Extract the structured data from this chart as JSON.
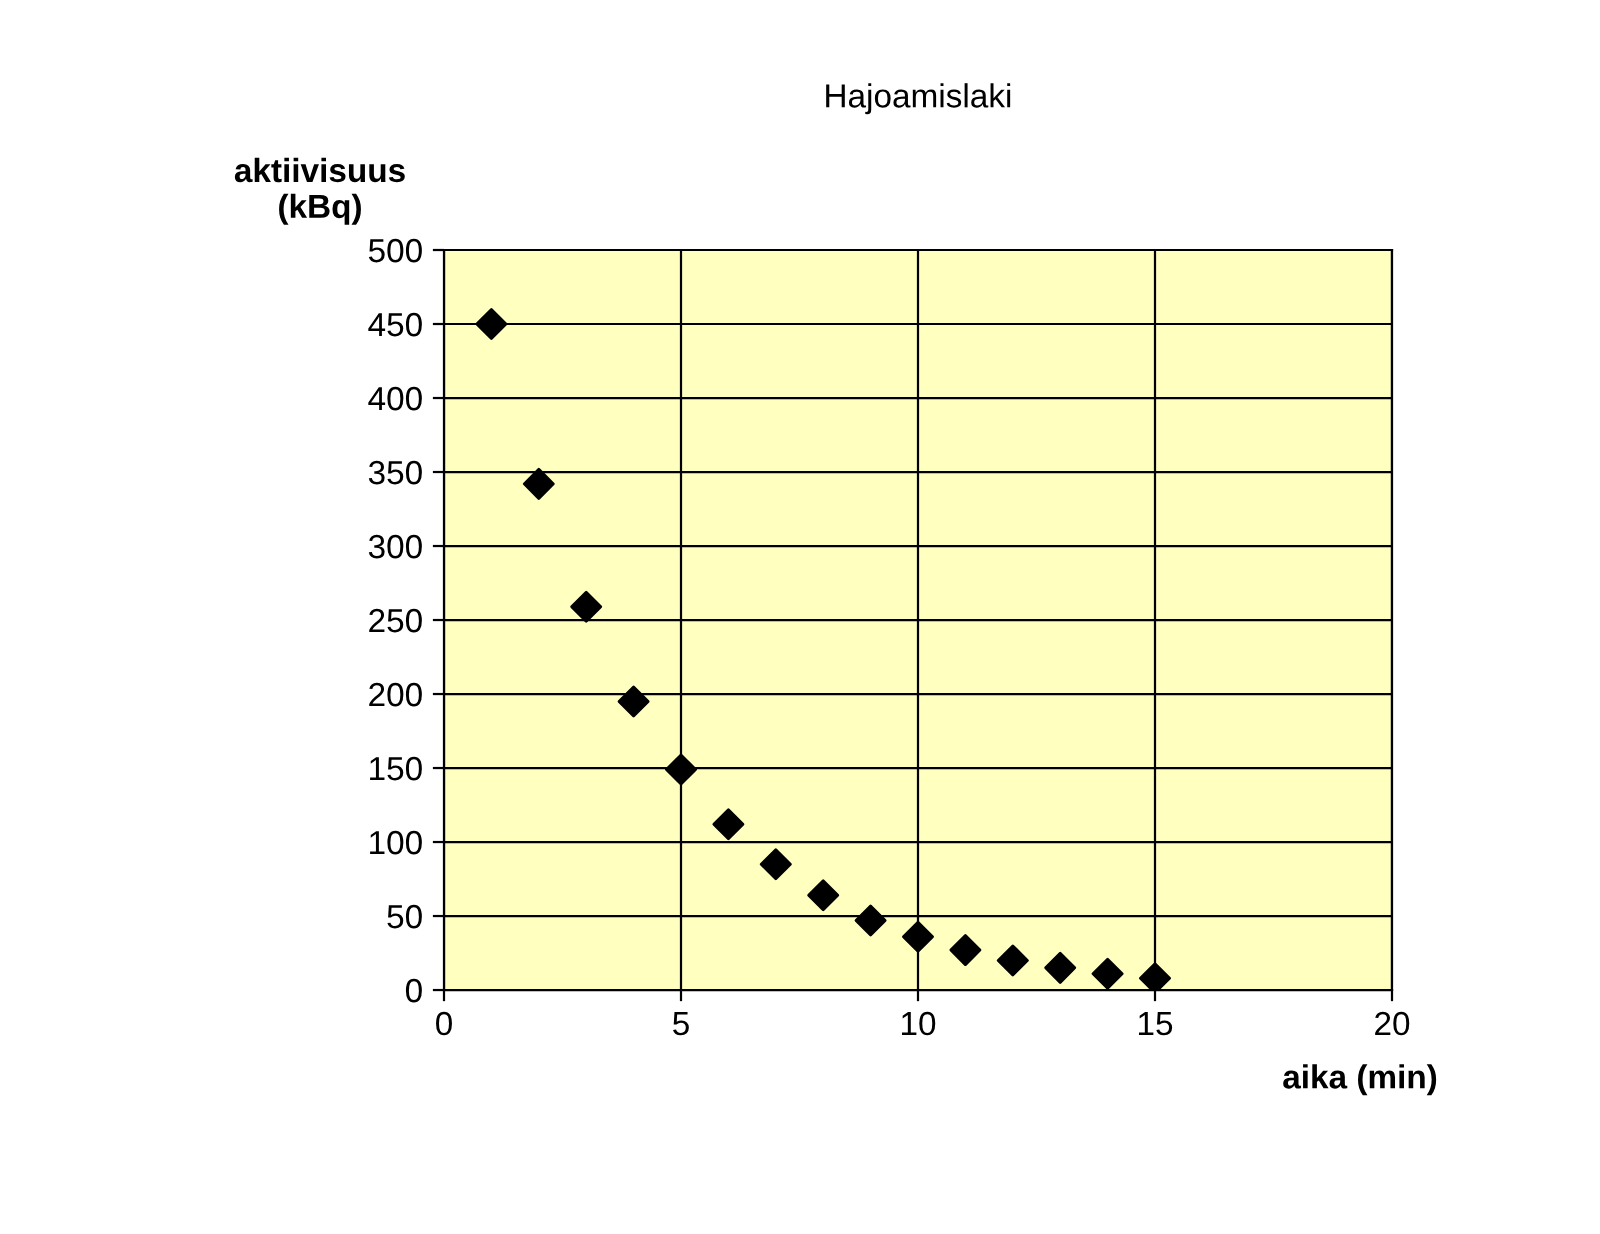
{
  "chart_data": {
    "type": "scatter",
    "title": "Hajoamislaki",
    "xlabel": "aika (min)",
    "ylabel": "aktiivisuus\n(kBq)",
    "x": [
      1,
      2,
      3,
      4,
      5,
      6,
      7,
      8,
      9,
      10,
      11,
      12,
      13,
      14,
      15
    ],
    "series": [
      {
        "color": "#000000",
        "values": [
          450,
          342,
          259,
          195,
          149,
          112,
          85,
          64,
          47,
          36,
          27,
          20,
          15,
          11,
          8
        ]
      }
    ],
    "xlim": [
      0,
      20
    ],
    "xticks": [
      0,
      5,
      10,
      15,
      20
    ],
    "ylim": [
      0,
      500
    ],
    "yticks": [
      0,
      50,
      100,
      150,
      200,
      250,
      300,
      350,
      400,
      450,
      500
    ],
    "grid": true,
    "marker": "diamond"
  }
}
